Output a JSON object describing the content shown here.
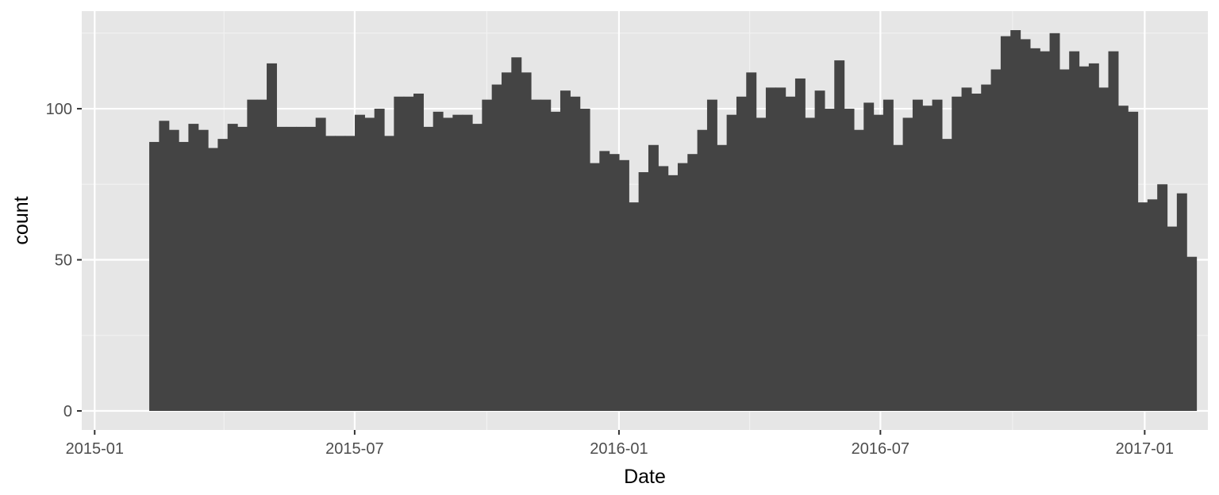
{
  "chart_data": {
    "type": "bar",
    "title": "",
    "xlabel": "Date",
    "ylabel": "count",
    "x_axis": {
      "range": [
        "2014-12-23",
        "2017-02-14"
      ],
      "ticks": [
        {
          "date": "2015-01-01",
          "label": "2015-01"
        },
        {
          "date": "2015-07-01",
          "label": "2015-07"
        },
        {
          "date": "2016-01-01",
          "label": "2016-01"
        },
        {
          "date": "2016-07-01",
          "label": "2016-07"
        },
        {
          "date": "2017-01-01",
          "label": "2017-01"
        }
      ],
      "minor_ticks": [
        "2015-04-01",
        "2015-10-01",
        "2016-04-01",
        "2016-10-01"
      ]
    },
    "y_axis": {
      "range": [
        -6.3,
        132.3
      ],
      "ticks": [
        0,
        50,
        100
      ],
      "minor_ticks": [
        25,
        75,
        125
      ]
    },
    "grid": true,
    "legend": "none",
    "bars": {
      "start_date": "2015-02-08",
      "end_date": "2017-02-06",
      "values": [
        89,
        96,
        93,
        89,
        95,
        93,
        87,
        90,
        95,
        94,
        103,
        103,
        115,
        94,
        94,
        94,
        94,
        97,
        91,
        91,
        91,
        98,
        97,
        100,
        91,
        104,
        104,
        105,
        94,
        99,
        97,
        98,
        98,
        95,
        103,
        108,
        112,
        117,
        112,
        103,
        103,
        99,
        106,
        104,
        100,
        82,
        86,
        85,
        83,
        69,
        79,
        88,
        81,
        78,
        82,
        85,
        93,
        103,
        88,
        98,
        104,
        112,
        97,
        107,
        107,
        104,
        110,
        97,
        106,
        100,
        116,
        100,
        93,
        102,
        98,
        103,
        88,
        97,
        103,
        101,
        103,
        90,
        104,
        107,
        105,
        108,
        113,
        124,
        126,
        123,
        120,
        119,
        125,
        113,
        119,
        114,
        115,
        107,
        119,
        101,
        99,
        69,
        70,
        75,
        61,
        72,
        51
      ]
    },
    "colors": {
      "bar": "#444444",
      "panel": "#e6e6e6",
      "grid_major": "#ffffff",
      "grid_minor": "#f2f2f2"
    }
  }
}
